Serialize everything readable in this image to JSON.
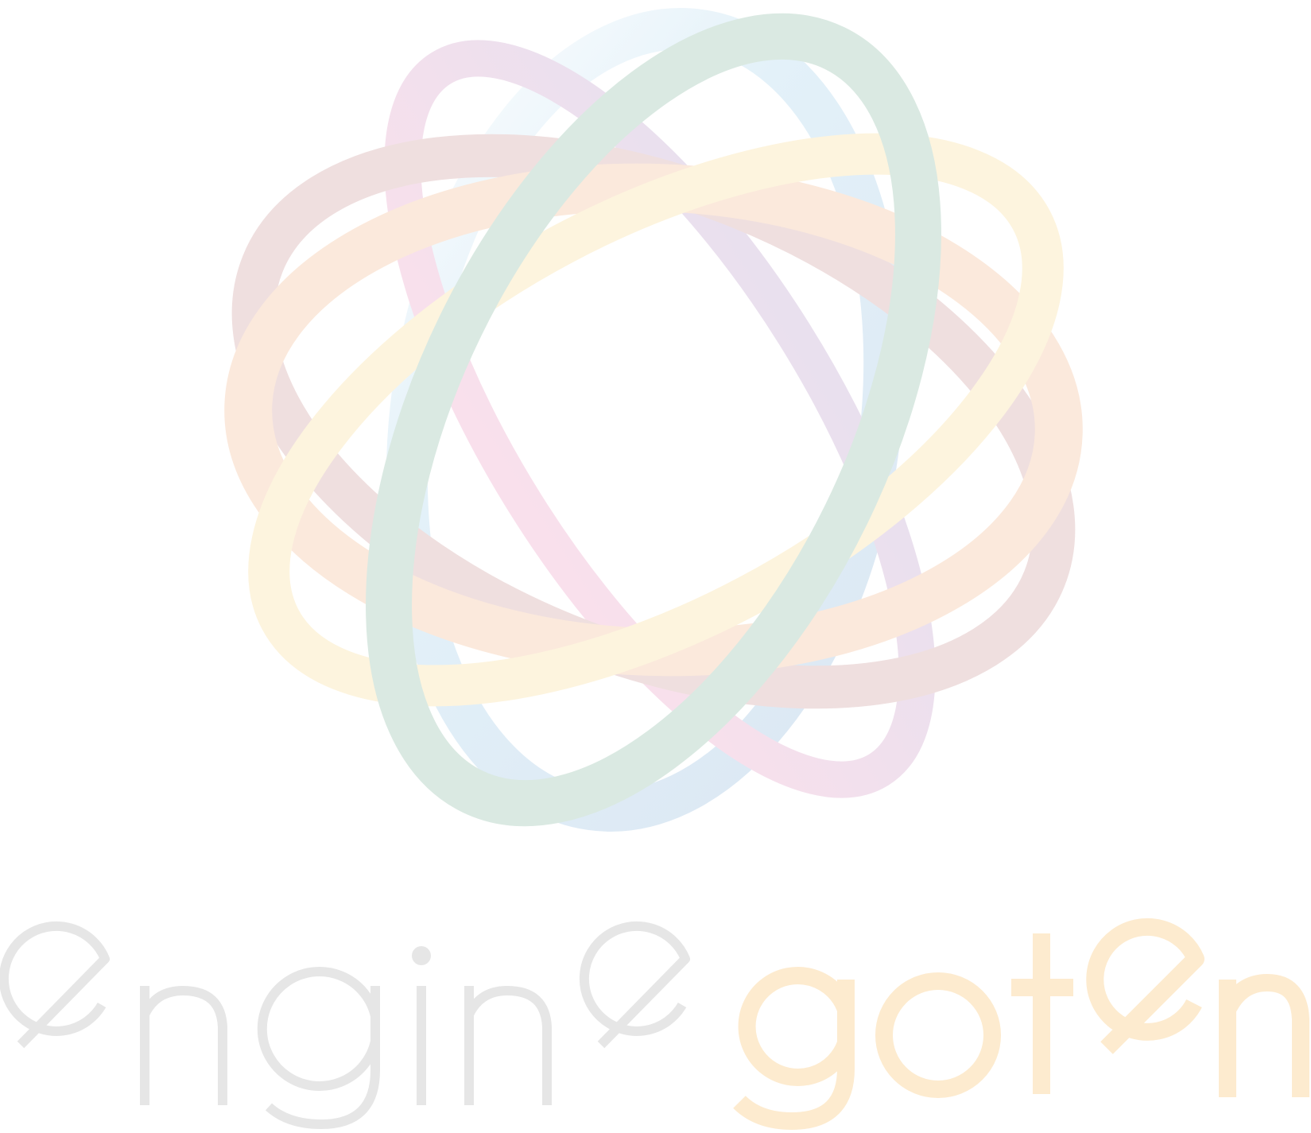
{
  "logo": {
    "wordmark_part1": "engine",
    "wordmark_part2": "goten",
    "colors": {
      "ring_blue": "#dde9f4",
      "ring_pink": "#f4e2ec",
      "ring_rose": "#efdfdf",
      "ring_peach": "#fbe9dc",
      "ring_yellow": "#fdf4de",
      "ring_green": "#dae9e2",
      "text_engine": "#e5e5e5",
      "text_goten": "#fdebcf"
    }
  }
}
